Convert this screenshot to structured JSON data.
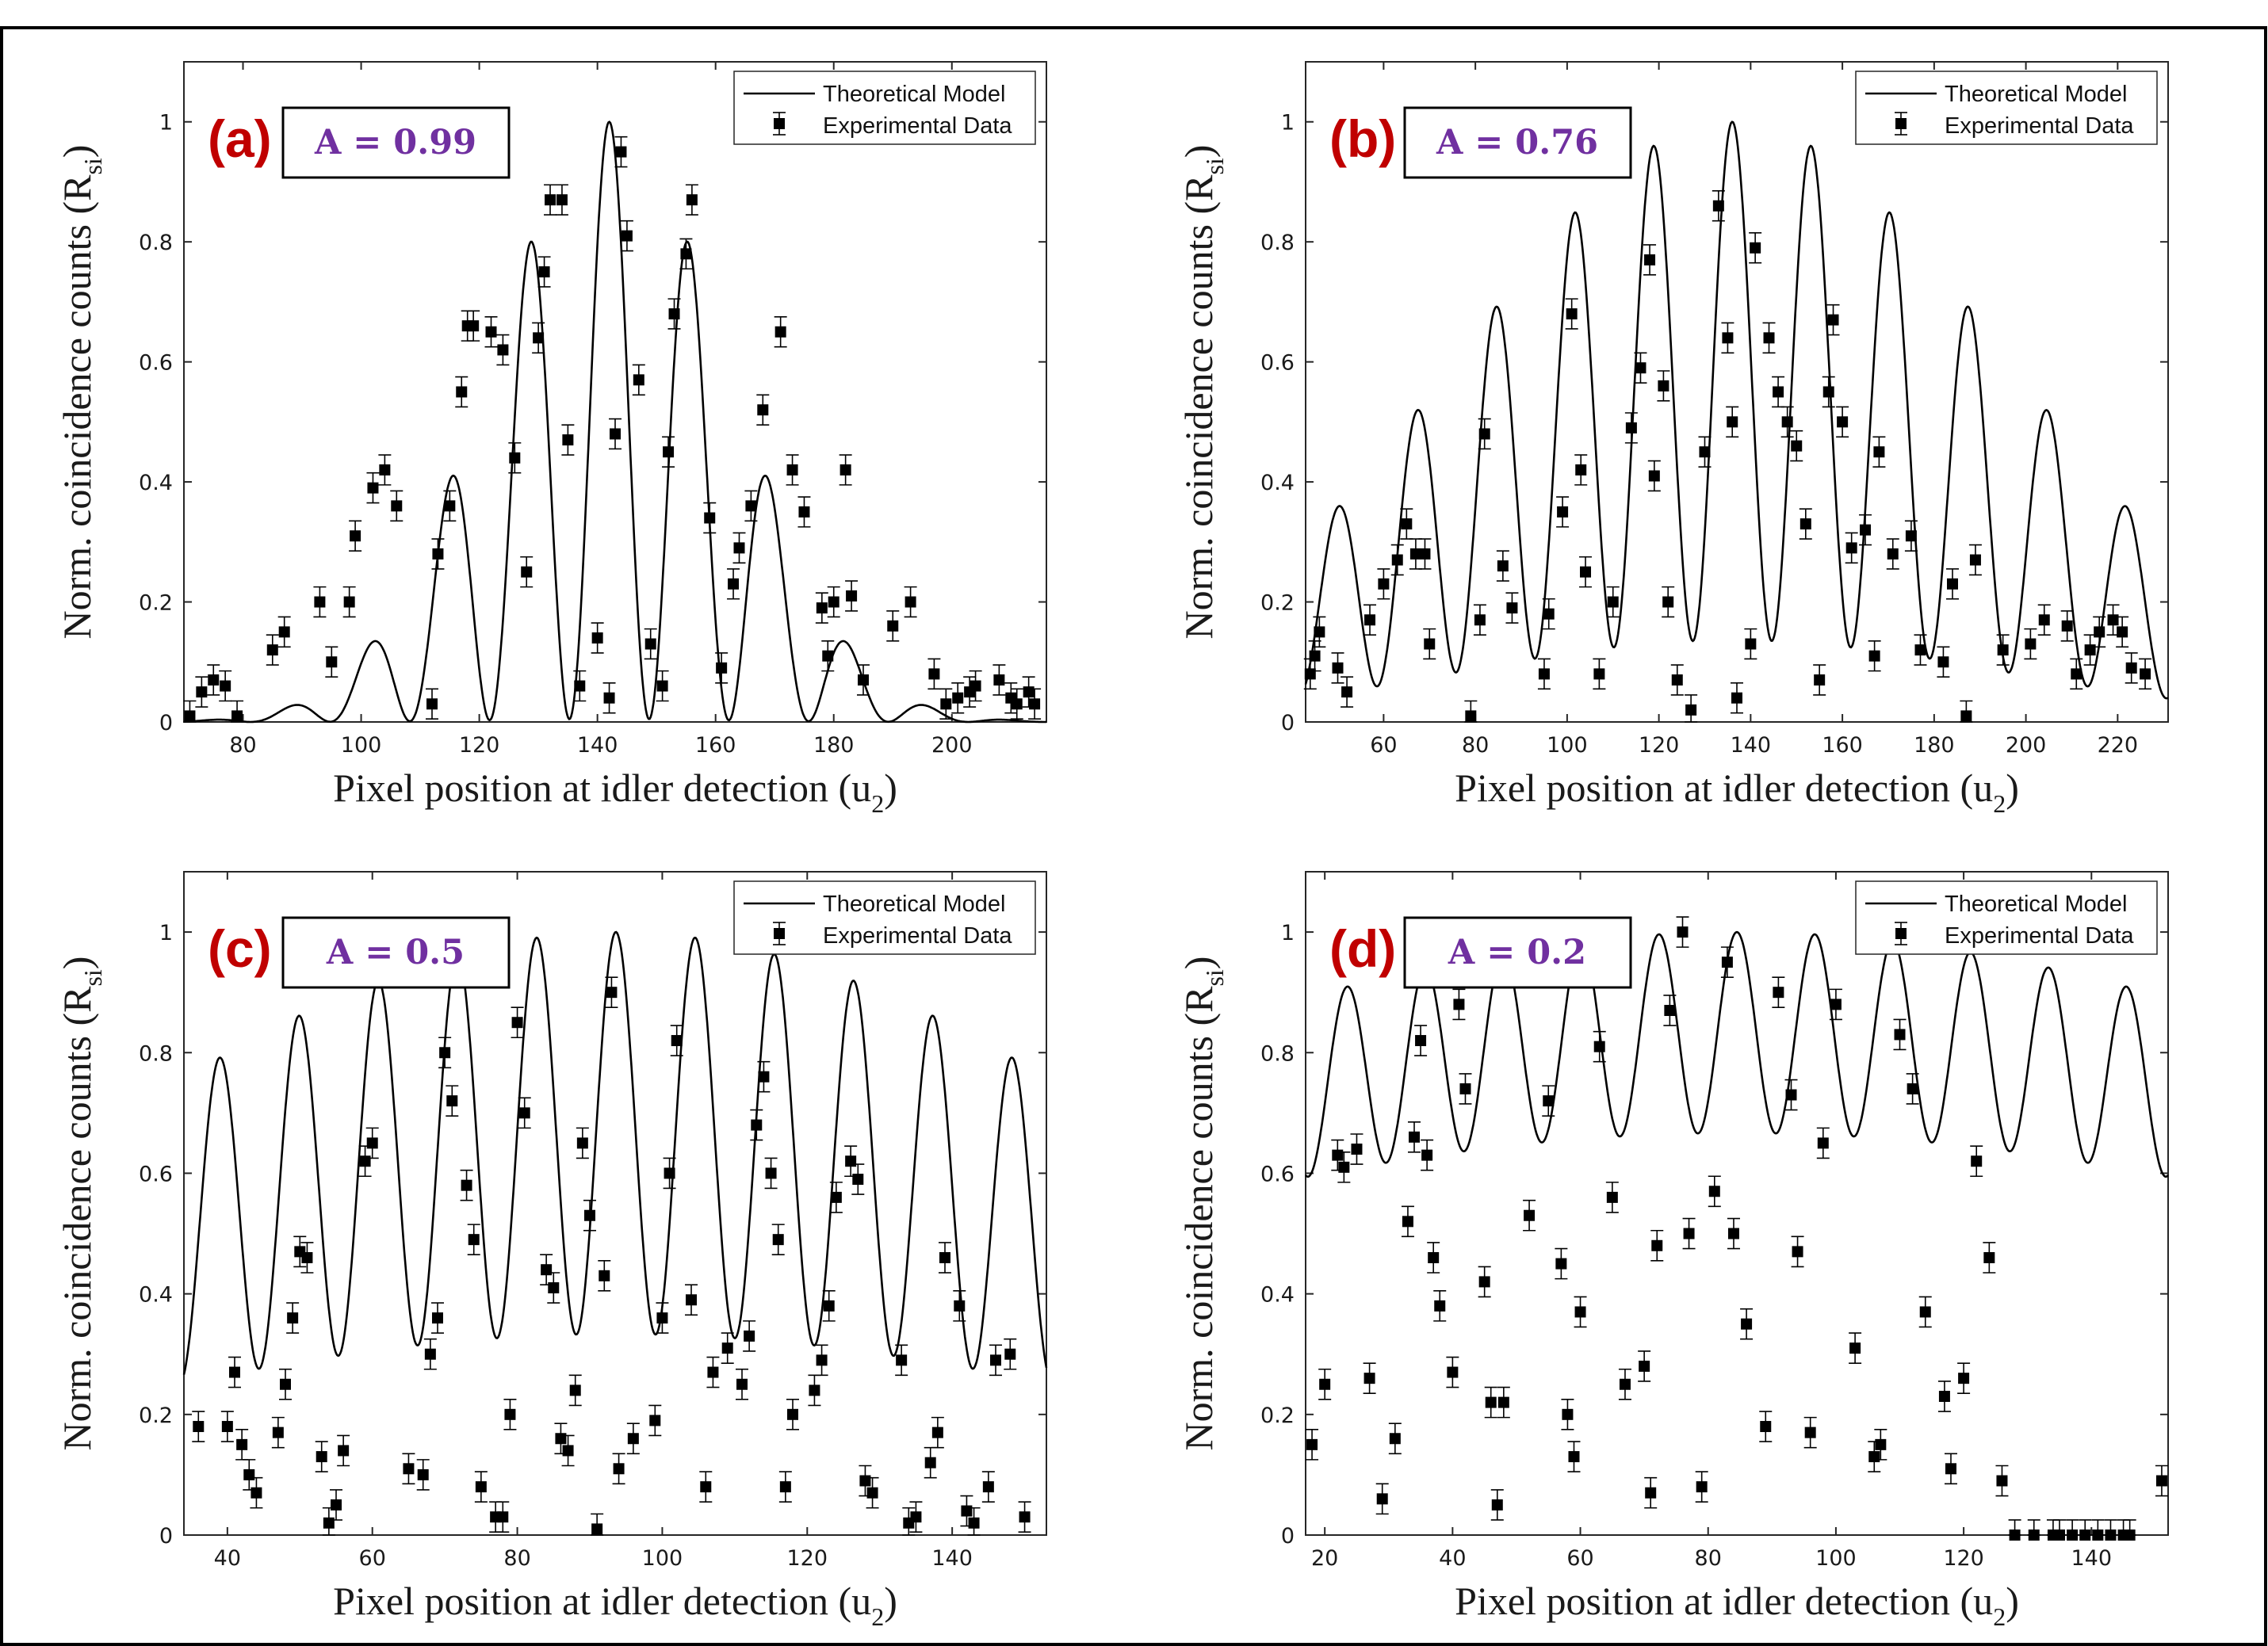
{
  "figure": {
    "border_color": "#000000"
  },
  "colors": {
    "line": "#000000",
    "marker": "#000000",
    "panel_letter": "#c00000",
    "a_value": "#7030a0"
  },
  "chart_data": [
    {
      "type": "line",
      "panel_letter": "(a)",
      "annotation": "A = 0.99",
      "xlabel": "Pixel position at idler detection (u",
      "xlabel_sub": "2",
      "xlabel_end": ")",
      "ylabel": "Norm. coincidence counts (R",
      "ylabel_sub": "si",
      "ylabel_end": ")",
      "xlim": [
        70,
        216
      ],
      "ylim": [
        0,
        1.1
      ],
      "xticks": [
        "80",
        "100",
        "120",
        "140",
        "160",
        "180",
        "200"
      ],
      "yticks": [
        "0",
        "0.2",
        "0.4",
        "0.6",
        "0.8",
        "1"
      ],
      "legend": {
        "position": "top-right",
        "entries": [
          "Theoretical Model",
          "Experimental Data"
        ]
      },
      "model": {
        "center": 142,
        "period": 13.5,
        "envelope": 20,
        "visibility": 0.99,
        "phase": 0
      },
      "series": [
        {
          "name": "Experimental Data",
          "x": [
            71,
            73,
            75,
            77,
            79,
            85,
            87,
            93,
            95,
            98,
            99,
            102,
            104,
            106,
            112,
            113,
            115,
            117,
            118,
            119,
            122,
            124,
            126,
            128,
            130,
            131,
            132,
            134,
            135,
            137,
            140,
            142,
            143,
            144,
            145,
            147,
            149,
            151,
            152,
            153,
            155,
            156,
            159,
            161,
            163,
            164,
            166,
            168,
            171,
            173,
            175,
            178,
            179,
            180,
            182,
            183,
            185,
            190,
            193,
            197,
            199,
            201,
            203,
            204,
            208,
            210,
            211,
            213,
            214
          ],
          "y": [
            0.01,
            0.05,
            0.07,
            0.06,
            0.01,
            0.12,
            0.15,
            0.2,
            0.1,
            0.2,
            0.31,
            0.39,
            0.42,
            0.36,
            0.03,
            0.28,
            0.36,
            0.55,
            0.66,
            0.66,
            0.65,
            0.62,
            0.44,
            0.25,
            0.64,
            0.75,
            0.87,
            0.87,
            0.47,
            0.06,
            0.14,
            0.04,
            0.48,
            0.95,
            0.81,
            0.57,
            0.13,
            0.06,
            0.45,
            0.68,
            0.78,
            0.87,
            0.34,
            0.09,
            0.23,
            0.29,
            0.36,
            0.52,
            0.65,
            0.42,
            0.35,
            0.19,
            0.11,
            0.2,
            0.42,
            0.21,
            0.07,
            0.16,
            0.2,
            0.08,
            0.03,
            0.04,
            0.05,
            0.06,
            0.07,
            0.04,
            0.03,
            0.05,
            0.03
          ],
          "err": 0.025
        }
      ]
    },
    {
      "type": "line",
      "panel_letter": "(b)",
      "annotation": "A = 0.76",
      "xlabel": "Pixel position at idler detection (u",
      "xlabel_sub": "2",
      "xlabel_end": ")",
      "ylabel": "Norm. coincidence counts (R",
      "ylabel_sub": "si",
      "ylabel_end": ")",
      "xlim": [
        43,
        231
      ],
      "ylim": [
        0,
        1.1
      ],
      "xticks": [
        "60",
        "80",
        "100",
        "120",
        "140",
        "160",
        "180",
        "200",
        "220"
      ],
      "yticks": [
        "0",
        "0.2",
        "0.4",
        "0.6",
        "0.8",
        "1"
      ],
      "legend": {
        "position": "top-right",
        "entries": [
          "Theoretical Model",
          "Experimental Data"
        ]
      },
      "model": {
        "center": 136,
        "period": 17.2,
        "envelope": 60,
        "visibility": 0.76,
        "phase": 0
      },
      "series": [
        {
          "name": "Experimental Data",
          "x": [
            44,
            45,
            46,
            50,
            52,
            57,
            60,
            63,
            65,
            67,
            69,
            70,
            79,
            81,
            82,
            86,
            88,
            95,
            96,
            99,
            101,
            103,
            104,
            107,
            110,
            114,
            116,
            118,
            119,
            121,
            122,
            124,
            127,
            130,
            133,
            135,
            136,
            137,
            140,
            141,
            144,
            146,
            148,
            150,
            152,
            155,
            157,
            158,
            160,
            162,
            165,
            167,
            168,
            171,
            175,
            177,
            182,
            184,
            187,
            189,
            195,
            201,
            204,
            209,
            211,
            214,
            216,
            219,
            221,
            223,
            226
          ],
          "y": [
            0.08,
            0.11,
            0.15,
            0.09,
            0.05,
            0.17,
            0.23,
            0.27,
            0.33,
            0.28,
            0.28,
            0.13,
            0.01,
            0.17,
            0.48,
            0.26,
            0.19,
            0.08,
            0.18,
            0.35,
            0.68,
            0.42,
            0.25,
            0.08,
            0.2,
            0.49,
            0.59,
            0.77,
            0.41,
            0.56,
            0.2,
            0.07,
            0.02,
            0.45,
            0.86,
            0.64,
            0.5,
            0.04,
            0.13,
            0.79,
            0.64,
            0.55,
            0.5,
            0.46,
            0.33,
            0.07,
            0.55,
            0.67,
            0.5,
            0.29,
            0.32,
            0.11,
            0.45,
            0.28,
            0.31,
            0.12,
            0.1,
            0.23,
            0.01,
            0.27,
            0.12,
            0.13,
            0.17,
            0.16,
            0.08,
            0.12,
            0.15,
            0.17,
            0.15,
            0.09,
            0.08
          ],
          "err": 0.025
        }
      ]
    },
    {
      "type": "line",
      "panel_letter": "(c)",
      "annotation": "A = 0.5",
      "xlabel": "Pixel position at idler detection (u",
      "xlabel_sub": "2",
      "xlabel_end": ")",
      "ylabel": "Norm. coincidence counts (R",
      "ylabel_sub": "si",
      "ylabel_end": ")",
      "xlim": [
        34,
        153
      ],
      "ylim": [
        0,
        1.1
      ],
      "xticks": [
        "40",
        "60",
        "80",
        "100",
        "120",
        "140"
      ],
      "yticks": [
        "0",
        "0.2",
        "0.4",
        "0.6",
        "0.8",
        "1"
      ],
      "legend": {
        "position": "top-right",
        "entries": [
          "Theoretical Model",
          "Experimental Data"
        ]
      },
      "model": {
        "center": 93.6,
        "period": 10.94,
        "envelope": 80,
        "visibility": 0.5,
        "phase": 0
      },
      "series": [
        {
          "name": "Experimental Data",
          "x": [
            36,
            40,
            41,
            42,
            43,
            44,
            47,
            48,
            49,
            50,
            51,
            53,
            54,
            55,
            56,
            59,
            60,
            65,
            67,
            68,
            69,
            70,
            71,
            73,
            74,
            75,
            77,
            78,
            79,
            80,
            81,
            84,
            85,
            86,
            87,
            88,
            89,
            90,
            91,
            92,
            93,
            94,
            96,
            99,
            100,
            101,
            102,
            104,
            106,
            107,
            109,
            111,
            112,
            113,
            114,
            115,
            116,
            117,
            118,
            121,
            122,
            123,
            124,
            126,
            127,
            128,
            129,
            133,
            134,
            135,
            137,
            138,
            139,
            141,
            142,
            143,
            145,
            146,
            148,
            150
          ],
          "y": [
            0.18,
            0.18,
            0.27,
            0.15,
            0.1,
            0.07,
            0.17,
            0.25,
            0.36,
            0.47,
            0.46,
            0.13,
            0.02,
            0.05,
            0.14,
            0.62,
            0.65,
            0.11,
            0.1,
            0.3,
            0.36,
            0.8,
            0.72,
            0.58,
            0.49,
            0.08,
            0.03,
            0.03,
            0.2,
            0.85,
            0.7,
            0.44,
            0.41,
            0.16,
            0.14,
            0.24,
            0.65,
            0.53,
            0.01,
            0.43,
            0.9,
            0.11,
            0.16,
            0.19,
            0.36,
            0.6,
            0.82,
            0.39,
            0.08,
            0.27,
            0.31,
            0.25,
            0.33,
            0.68,
            0.76,
            0.6,
            0.49,
            0.08,
            0.2,
            0.24,
            0.29,
            0.38,
            0.56,
            0.62,
            0.59,
            0.09,
            0.07,
            0.29,
            0.02,
            0.03,
            0.12,
            0.17,
            0.46,
            0.38,
            0.04,
            0.02,
            0.08,
            0.29,
            0.3,
            0.03
          ],
          "err": 0.025
        }
      ]
    },
    {
      "type": "line",
      "panel_letter": "(d)",
      "annotation": "A = 0.2",
      "xlabel": "Pixel position at idler detection (u",
      "xlabel_sub": "2",
      "xlabel_end": ")",
      "ylabel": "Norm. coincidence counts (R",
      "ylabel_sub": "si",
      "ylabel_end": ")",
      "xlim": [
        17,
        152
      ],
      "ylim": [
        0,
        1.1
      ],
      "xticks": [
        "20",
        "40",
        "60",
        "80",
        "100",
        "120",
        "140"
      ],
      "yticks": [
        "0",
        "0.2",
        "0.4",
        "0.6",
        "0.8",
        "1"
      ],
      "legend": {
        "position": "top-right",
        "entries": [
          "Theoretical Model",
          "Experimental Data"
        ]
      },
      "model": {
        "center": 84.5,
        "period": 12.2,
        "envelope": 140,
        "visibility": 0.2,
        "phase": 0
      },
      "series": [
        {
          "name": "Experimental Data",
          "x": [
            18,
            20,
            22,
            23,
            25,
            27,
            29,
            31,
            33,
            34,
            35,
            36,
            37,
            38,
            40,
            41,
            42,
            45,
            46,
            47,
            48,
            52,
            54,
            55,
            57,
            58,
            59,
            60,
            61,
            63,
            65,
            67,
            70,
            71,
            72,
            74,
            76,
            77,
            79,
            81,
            83,
            84,
            86,
            89,
            91,
            93,
            94,
            96,
            98,
            100,
            103,
            106,
            107,
            110,
            112,
            114,
            117,
            118,
            120,
            122,
            124,
            126,
            128,
            131,
            134,
            135,
            137,
            139,
            141,
            143,
            145,
            146,
            151
          ],
          "y": [
            0.15,
            0.25,
            0.63,
            0.61,
            0.64,
            0.26,
            0.06,
            0.16,
            0.52,
            0.66,
            0.82,
            0.63,
            0.46,
            0.38,
            0.27,
            0.88,
            0.74,
            0.42,
            0.22,
            0.05,
            0.22,
            0.53,
            0.94,
            0.72,
            0.45,
            0.2,
            0.13,
            0.37,
            0.96,
            0.81,
            0.56,
            0.25,
            0.28,
            0.07,
            0.48,
            0.87,
            1.0,
            0.5,
            0.08,
            0.57,
            0.95,
            0.5,
            0.35,
            0.18,
            0.9,
            0.73,
            0.47,
            0.17,
            0.65,
            0.88,
            0.31,
            0.13,
            0.15,
            0.83,
            0.74,
            0.37,
            0.23,
            0.11,
            0.26,
            0.62,
            0.46,
            0.09,
            0.0,
            0.0,
            0.0,
            0.0,
            0.0,
            0.0,
            0.0,
            0.0,
            0.0,
            0.0,
            0.09
          ],
          "err": 0.025
        }
      ]
    }
  ]
}
